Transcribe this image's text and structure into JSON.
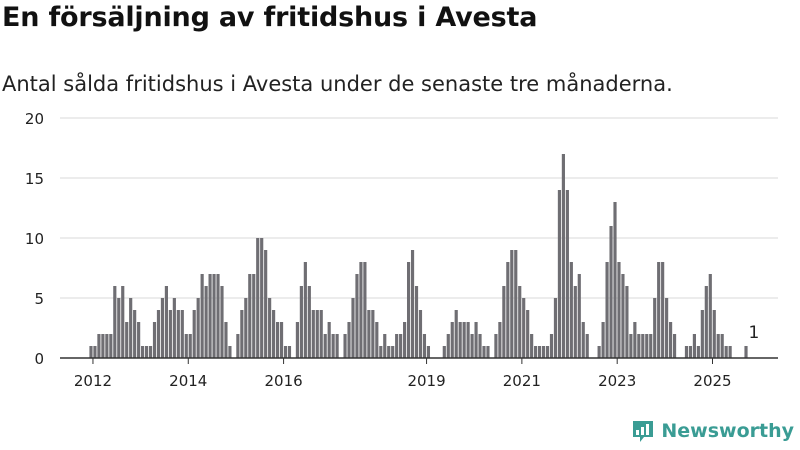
{
  "header": {
    "title": "En försäljning av fritidshus i Avesta",
    "subtitle": "Antal sålda fritidshus i Avesta under de senaste tre månaderna."
  },
  "brand": {
    "name": "Newsworthy",
    "icon": "newsworthy-logo-icon"
  },
  "colors": {
    "bar": "#6f6e73",
    "highlight": "#2a9d8f",
    "grid": "#d9d9d9",
    "brand": "#3a9c94"
  },
  "chart_data": {
    "type": "bar",
    "title": "En försäljning av fritidshus i Avesta",
    "subtitle": "Antal sålda fritidshus i Avesta under de senaste tre månaderna.",
    "xlabel": "",
    "ylabel": "",
    "ylim": [
      0,
      20
    ],
    "yticks": [
      0,
      5,
      10,
      15,
      20
    ],
    "xticks": [
      "2012",
      "2014",
      "2016",
      "2019",
      "2021",
      "2023",
      "2025"
    ],
    "xtick_positions": [
      2012,
      2014,
      2016,
      2019,
      2021,
      2023,
      2025
    ],
    "x_start": 2011.917,
    "x_step": 0.0833,
    "grid": true,
    "highlight_label": "1",
    "values": [
      1,
      1,
      2,
      2,
      2,
      2,
      6,
      5,
      6,
      3,
      5,
      4,
      3,
      1,
      1,
      1,
      3,
      4,
      5,
      6,
      4,
      5,
      4,
      4,
      2,
      2,
      4,
      5,
      7,
      6,
      7,
      7,
      7,
      6,
      3,
      1,
      0,
      2,
      4,
      5,
      7,
      7,
      10,
      10,
      9,
      5,
      4,
      3,
      3,
      1,
      1,
      0,
      3,
      6,
      8,
      6,
      4,
      4,
      4,
      2,
      3,
      2,
      2,
      0,
      2,
      3,
      5,
      7,
      8,
      8,
      4,
      4,
      3,
      1,
      2,
      1,
      1,
      2,
      2,
      3,
      8,
      9,
      6,
      4,
      2,
      1,
      0,
      0,
      0,
      1,
      2,
      3,
      4,
      3,
      3,
      3,
      2,
      3,
      2,
      1,
      1,
      0,
      2,
      3,
      6,
      8,
      9,
      9,
      6,
      5,
      4,
      2,
      1,
      1,
      1,
      1,
      2,
      5,
      14,
      17,
      14,
      8,
      6,
      7,
      3,
      2,
      0,
      0,
      1,
      3,
      8,
      11,
      13,
      8,
      7,
      6,
      2,
      3,
      2,
      2,
      2,
      2,
      5,
      8,
      8,
      5,
      3,
      2,
      0,
      0,
      1,
      1,
      2,
      1,
      4,
      6,
      7,
      4,
      2,
      2,
      1,
      1,
      0,
      0,
      0,
      1
    ],
    "highlight": {
      "index": 167,
      "value": 1
    }
  }
}
